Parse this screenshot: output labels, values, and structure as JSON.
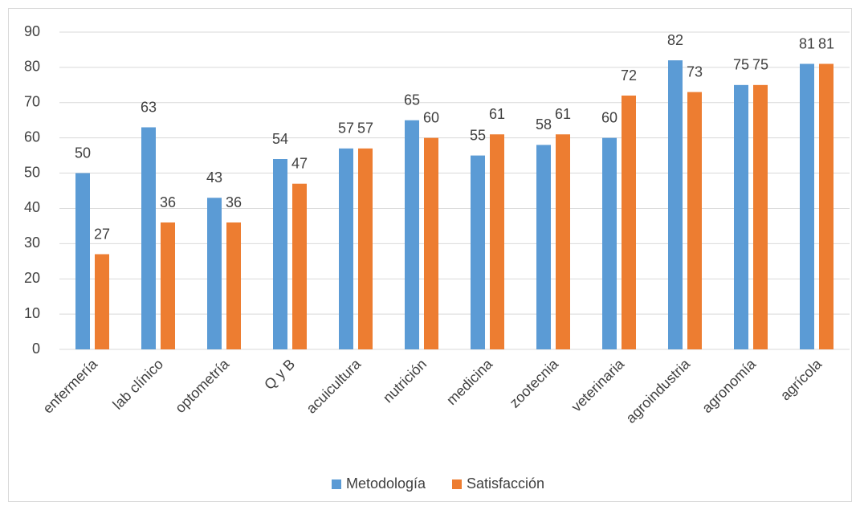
{
  "chart_data": {
    "type": "bar",
    "categories": [
      "enfermería",
      "lab clínico",
      "optometría",
      "Q y B",
      "acuicultura",
      "nutrición",
      "medicina",
      "zootecnia",
      "veterinaria",
      "agroindustria",
      "agronomía",
      "agrícola"
    ],
    "series": [
      {
        "name": "Metodología",
        "color": "#5b9bd5",
        "values": [
          50,
          63,
          43,
          54,
          57,
          65,
          55,
          58,
          60,
          82,
          75,
          81
        ]
      },
      {
        "name": "Satisfacción",
        "color": "#ed7d31",
        "values": [
          27,
          36,
          36,
          47,
          57,
          60,
          61,
          61,
          72,
          73,
          75,
          81
        ]
      }
    ],
    "ylim": [
      0,
      90
    ],
    "yticks": [
      0,
      10,
      20,
      30,
      40,
      50,
      60,
      70,
      80,
      90
    ],
    "grid": true,
    "legend": "bottom"
  }
}
